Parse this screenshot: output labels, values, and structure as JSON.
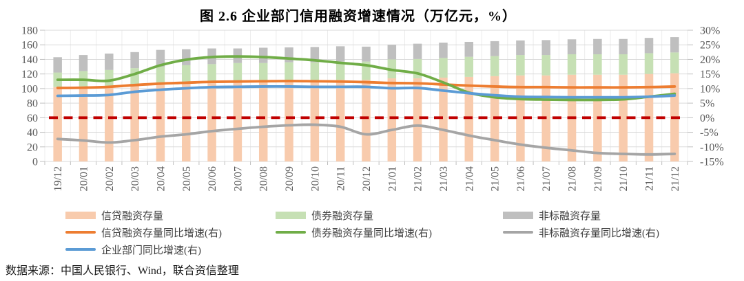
{
  "title": "图 2.6  企业部门信用融资增速情况（万亿元，%）",
  "source_note": "数据来源：中国人民银行、Wind，联合资信整理",
  "chart_data": {
    "type": "combo-stacked-bar-line",
    "title": "图 2.6  企业部门信用融资增速情况（万亿元，%）",
    "unit_note": "万亿元，%",
    "grid": {
      "horizontal": true,
      "vertical": true
    },
    "legend_position": "bottom",
    "categories": [
      "19/12",
      "20/01",
      "20/02",
      "20/03",
      "20/04",
      "20/05",
      "20/06",
      "20/07",
      "20/08",
      "20/09",
      "20/10",
      "20/11",
      "20/12",
      "21/01",
      "21/02",
      "21/03",
      "21/04",
      "21/05",
      "21/06",
      "21/07",
      "21/08",
      "21/09",
      "21/10",
      "21/11",
      "21/12"
    ],
    "left_axis": {
      "min": 0,
      "max": 180,
      "step": 20,
      "ticks": [
        "180",
        "160",
        "140",
        "120",
        "100",
        "80",
        "60",
        "40",
        "20",
        "0"
      ]
    },
    "right_axis": {
      "min": -15,
      "max": 30,
      "step": 5,
      "unit": "%",
      "ticks": [
        "30%",
        "25%",
        "20%",
        "15%",
        "10%",
        "5%",
        "0%",
        "-5%",
        "-10%",
        "-15%"
      ]
    },
    "bar_series": [
      {
        "name": "信贷融资存量",
        "color": "#F8CBAD",
        "values": [
          102,
          103,
          104,
          106,
          107,
          108,
          109,
          110,
          110,
          111,
          111,
          112,
          112,
          114,
          114,
          115,
          116,
          117,
          118,
          118,
          119,
          119,
          119,
          120,
          121
        ]
      },
      {
        "name": "债券融资存量",
        "color": "#C6E0B4",
        "values": [
          20,
          21,
          21.5,
          22,
          23,
          24,
          24.5,
          25,
          25,
          25,
          25,
          25,
          25,
          26,
          26.5,
          27,
          27.5,
          27.5,
          28,
          28,
          28,
          28,
          28,
          28.5,
          28.5
        ]
      },
      {
        "name": "非标融资存量",
        "color": "#BFBFBF",
        "values": [
          21,
          22,
          22.5,
          22,
          23,
          22,
          21.5,
          20,
          21,
          20.5,
          21,
          21,
          20.5,
          20,
          21,
          21,
          20.5,
          20.5,
          20,
          20.5,
          20.5,
          21,
          21,
          21,
          21
        ]
      }
    ],
    "line_series": [
      {
        "name": "信贷融资存量同比增速(右)",
        "color": "#ED7D31",
        "axis": "right",
        "values": [
          10.2,
          10.3,
          10.6,
          11.2,
          11.7,
          12.0,
          12.3,
          12.4,
          12.5,
          12.6,
          12.5,
          12.4,
          12.2,
          11.9,
          11.8,
          11.4,
          11.0,
          10.7,
          10.5,
          10.5,
          10.4,
          10.4,
          10.4,
          10.5,
          10.7
        ]
      },
      {
        "name": "债券融资存量同比增速(右)",
        "color": "#70AD47",
        "axis": "right",
        "values": [
          13.0,
          13.0,
          12.7,
          15.0,
          18.0,
          19.9,
          20.8,
          21.0,
          20.8,
          20.3,
          19.7,
          18.8,
          18.0,
          16.4,
          15.2,
          12.1,
          8.6,
          7.0,
          6.4,
          6.2,
          6.1,
          6.1,
          6.3,
          7.2,
          8.2
        ]
      },
      {
        "name": "非标融资存量同比增速(右)",
        "color": "#A5A5A5",
        "axis": "right",
        "values": [
          -7.3,
          -7.8,
          -8.5,
          -7.7,
          -6.5,
          -5.7,
          -4.6,
          -3.8,
          -3.1,
          -2.6,
          -2.4,
          -3.1,
          -5.7,
          -4.2,
          -2.7,
          -4.2,
          -6.1,
          -7.7,
          -9.2,
          -10.3,
          -11.2,
          -12.1,
          -12.4,
          -12.6,
          -12.4
        ]
      },
      {
        "name": "企业部门同比增速(右)",
        "color": "#5B9BD5",
        "axis": "right",
        "values": [
          7.5,
          7.6,
          7.8,
          8.9,
          9.6,
          10.1,
          10.5,
          10.6,
          10.7,
          10.7,
          10.6,
          10.6,
          10.6,
          10.1,
          10.2,
          9.3,
          8.4,
          7.7,
          7.2,
          7.1,
          7.0,
          7.0,
          7.0,
          7.2,
          7.6
        ]
      }
    ],
    "reference_line": {
      "axis": "right",
      "value": 0,
      "color": "#C00000",
      "style": "dashed"
    }
  },
  "legend": {
    "items": [
      {
        "id": "credit-stock",
        "label": "信贷融资存量",
        "swatch": "bar",
        "color": "#F8CBAD",
        "row": 0,
        "col": 0
      },
      {
        "id": "bond-stock",
        "label": "债券融资存量",
        "swatch": "bar",
        "color": "#C6E0B4",
        "row": 0,
        "col": 1
      },
      {
        "id": "nonstd-stock",
        "label": "非标融资存量",
        "swatch": "bar",
        "color": "#BFBFBF",
        "row": 0,
        "col": 2
      },
      {
        "id": "credit-yoy",
        "label": "信贷融资存量同比增速(右)",
        "swatch": "line",
        "color": "#ED7D31",
        "row": 1,
        "col": 0
      },
      {
        "id": "bond-yoy",
        "label": "债券融资存量同比增速(右)",
        "swatch": "line",
        "color": "#70AD47",
        "row": 1,
        "col": 1
      },
      {
        "id": "nonstd-yoy",
        "label": "非标融资存量同比增速(右)",
        "swatch": "line",
        "color": "#A5A5A5",
        "row": 1,
        "col": 2
      },
      {
        "id": "corporate-yoy",
        "label": "企业部门同比增速(右)",
        "swatch": "line",
        "color": "#5B9BD5",
        "row": 2,
        "col": 0
      }
    ]
  },
  "colors": {
    "gridline": "#D9D9D9",
    "vertical_gridline": "#ECECEC",
    "tick": "#BFBFBF",
    "axis_text": "#595959",
    "reference": "#C00000"
  }
}
